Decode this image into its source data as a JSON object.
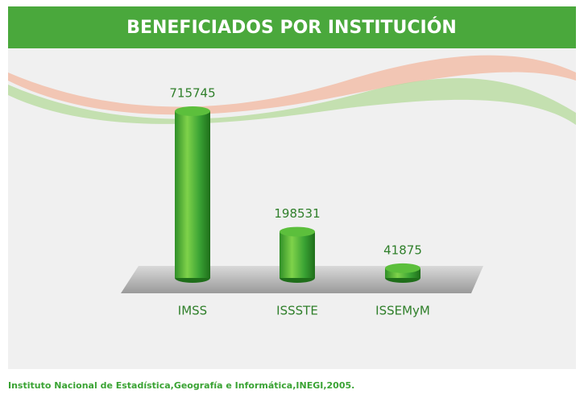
{
  "chart_data": {
    "type": "bar",
    "title": "BENEFICIADOS POR INSTITUCIÓN",
    "categories": [
      "IMSS",
      "ISSSTE",
      "ISSEMyM"
    ],
    "values": [
      715745,
      198531,
      41875
    ],
    "color": "#3aa334",
    "source": "Instituto Nacional de Estadística,Geografía e Informática,INEGI,2005."
  }
}
